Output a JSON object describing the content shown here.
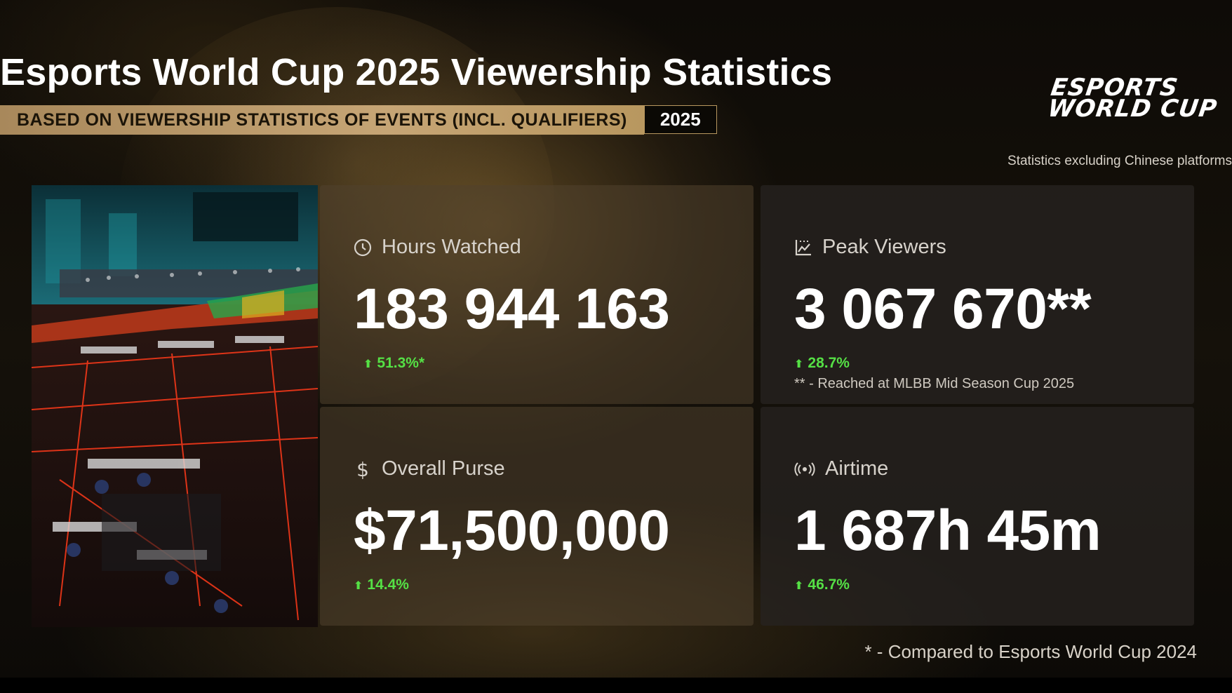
{
  "title": "Esports World Cup 2025 Viewership Statistics",
  "subtitle": "BASED ON VIEWERSHIP STATISTICS OF EVENTS (INCL. QUALIFIERS)",
  "year": "2025",
  "logo": {
    "line1": "ESPORTS",
    "line2": "WORLD CUP"
  },
  "note_top": "Statistics excluding Chinese platforms",
  "photo": {
    "description_icon": "arena-photo"
  },
  "cards": [
    {
      "label": "Hours Watched",
      "value": "183 944 163",
      "change": "51.3%*",
      "icon": "clock-icon"
    },
    {
      "label": "Peak Viewers",
      "value": "3 067 670**",
      "change": "28.7%",
      "footnote": "** - Reached at MLBB Mid Season Cup 2025",
      "icon": "chart-icon"
    },
    {
      "label": "Overall Purse",
      "value": "$71,500,000",
      "change": "14.4%",
      "icon": "dollar-icon"
    },
    {
      "label": "Airtime",
      "value": "1 687h 45m",
      "change": "46.7%",
      "icon": "broadcast-icon"
    }
  ],
  "note_bottom": "* - Compared to Esports World Cup 2024",
  "colors": {
    "accent_gold": "#b8975f",
    "positive_green": "#55e045"
  }
}
